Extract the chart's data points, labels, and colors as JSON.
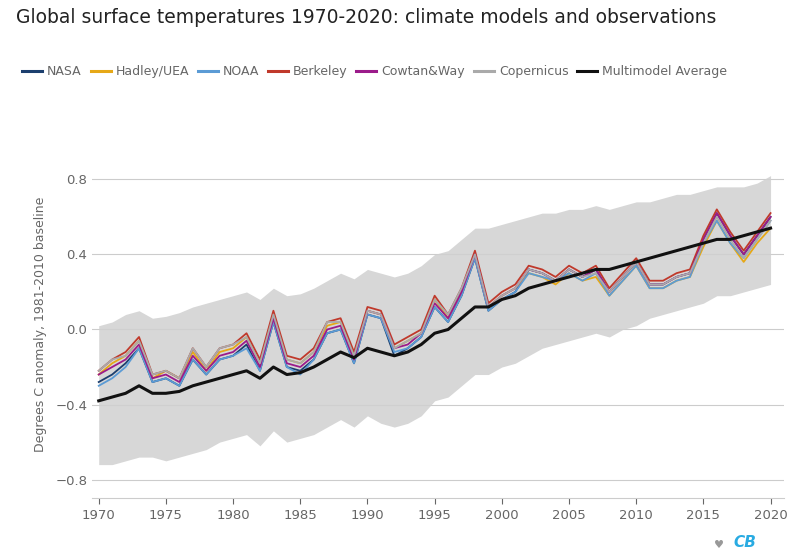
{
  "title": "Global surface temperatures 1970-2020: climate models and observations",
  "ylabel": "Degrees C anomaly, 1981-2010 baseline",
  "years": [
    1970,
    1971,
    1972,
    1973,
    1974,
    1975,
    1976,
    1977,
    1978,
    1979,
    1980,
    1981,
    1982,
    1983,
    1984,
    1985,
    1986,
    1987,
    1988,
    1989,
    1990,
    1991,
    1992,
    1993,
    1994,
    1995,
    1996,
    1997,
    1998,
    1999,
    2000,
    2001,
    2002,
    2003,
    2004,
    2005,
    2006,
    2007,
    2008,
    2009,
    2010,
    2011,
    2012,
    2013,
    2014,
    2015,
    2016,
    2017,
    2018,
    2019,
    2020
  ],
  "NASA": [
    -0.28,
    -0.24,
    -0.18,
    -0.1,
    -0.28,
    -0.26,
    -0.3,
    -0.16,
    -0.24,
    -0.16,
    -0.14,
    -0.08,
    -0.22,
    0.04,
    -0.2,
    -0.22,
    -0.16,
    -0.02,
    0.0,
    -0.18,
    0.08,
    0.06,
    -0.14,
    -0.1,
    -0.04,
    0.12,
    0.04,
    0.18,
    0.38,
    0.1,
    0.16,
    0.2,
    0.32,
    0.3,
    0.26,
    0.32,
    0.28,
    0.32,
    0.2,
    0.28,
    0.36,
    0.24,
    0.24,
    0.28,
    0.3,
    0.48,
    0.62,
    0.5,
    0.4,
    0.5,
    0.6
  ],
  "HadleyUEA": [
    -0.24,
    -0.18,
    -0.14,
    -0.06,
    -0.26,
    -0.22,
    -0.26,
    -0.12,
    -0.22,
    -0.12,
    -0.1,
    -0.04,
    -0.18,
    0.08,
    -0.16,
    -0.18,
    -0.12,
    0.02,
    0.04,
    -0.14,
    0.1,
    0.08,
    -0.1,
    -0.06,
    -0.02,
    0.16,
    0.06,
    0.2,
    0.4,
    0.12,
    0.18,
    0.22,
    0.3,
    0.28,
    0.24,
    0.3,
    0.26,
    0.28,
    0.18,
    0.26,
    0.34,
    0.22,
    0.22,
    0.26,
    0.28,
    0.44,
    0.58,
    0.46,
    0.36,
    0.46,
    0.54
  ],
  "NOAA": [
    -0.3,
    -0.26,
    -0.2,
    -0.1,
    -0.28,
    -0.26,
    -0.3,
    -0.16,
    -0.24,
    -0.16,
    -0.14,
    -0.1,
    -0.22,
    0.04,
    -0.2,
    -0.24,
    -0.16,
    -0.02,
    0.0,
    -0.18,
    0.08,
    0.06,
    -0.12,
    -0.1,
    -0.04,
    0.12,
    0.04,
    0.18,
    0.38,
    0.1,
    0.16,
    0.2,
    0.3,
    0.28,
    0.26,
    0.3,
    0.26,
    0.3,
    0.18,
    0.26,
    0.34,
    0.22,
    0.22,
    0.26,
    0.28,
    0.46,
    0.58,
    0.46,
    0.38,
    0.48,
    0.58
  ],
  "Berkeley": [
    -0.22,
    -0.16,
    -0.12,
    -0.04,
    -0.24,
    -0.22,
    -0.26,
    -0.1,
    -0.2,
    -0.1,
    -0.08,
    -0.02,
    -0.16,
    0.1,
    -0.14,
    -0.16,
    -0.1,
    0.04,
    0.06,
    -0.12,
    0.12,
    0.1,
    -0.08,
    -0.04,
    0.0,
    0.18,
    0.08,
    0.22,
    0.42,
    0.14,
    0.2,
    0.24,
    0.34,
    0.32,
    0.28,
    0.34,
    0.3,
    0.34,
    0.22,
    0.3,
    0.38,
    0.26,
    0.26,
    0.3,
    0.32,
    0.5,
    0.64,
    0.52,
    0.42,
    0.52,
    0.62
  ],
  "CowtanWay": [
    -0.24,
    -0.2,
    -0.16,
    -0.08,
    -0.26,
    -0.24,
    -0.28,
    -0.14,
    -0.22,
    -0.14,
    -0.12,
    -0.06,
    -0.2,
    0.06,
    -0.18,
    -0.2,
    -0.14,
    0.0,
    0.02,
    -0.16,
    0.1,
    0.08,
    -0.1,
    -0.08,
    -0.02,
    0.14,
    0.06,
    0.2,
    0.4,
    0.12,
    0.18,
    0.22,
    0.32,
    0.3,
    0.26,
    0.32,
    0.28,
    0.32,
    0.2,
    0.28,
    0.36,
    0.24,
    0.24,
    0.28,
    0.3,
    0.48,
    0.62,
    0.5,
    0.4,
    0.5,
    0.6
  ],
  "Copernicus": [
    -0.22,
    -0.16,
    -0.14,
    -0.06,
    -0.24,
    -0.22,
    -0.26,
    -0.1,
    -0.2,
    -0.1,
    -0.08,
    -0.04,
    -0.18,
    0.08,
    -0.16,
    -0.18,
    -0.12,
    0.04,
    0.04,
    -0.14,
    0.1,
    0.08,
    -0.1,
    -0.06,
    -0.02,
    0.16,
    0.08,
    0.22,
    0.4,
    0.12,
    0.18,
    0.22,
    0.32,
    0.3,
    0.26,
    0.32,
    0.28,
    0.3,
    0.2,
    0.28,
    0.36,
    0.24,
    0.24,
    0.28,
    0.3,
    0.46,
    0.6,
    0.48,
    0.38,
    0.48,
    0.58
  ],
  "MultimodelMean": [
    -0.38,
    -0.36,
    -0.34,
    -0.3,
    -0.34,
    -0.34,
    -0.33,
    -0.3,
    -0.28,
    -0.26,
    -0.24,
    -0.22,
    -0.26,
    -0.2,
    -0.24,
    -0.23,
    -0.2,
    -0.16,
    -0.12,
    -0.15,
    -0.1,
    -0.12,
    -0.14,
    -0.12,
    -0.08,
    -0.02,
    0.0,
    0.06,
    0.12,
    0.12,
    0.16,
    0.18,
    0.22,
    0.24,
    0.26,
    0.28,
    0.3,
    0.32,
    0.32,
    0.34,
    0.36,
    0.38,
    0.4,
    0.42,
    0.44,
    0.46,
    0.48,
    0.48,
    0.5,
    0.52,
    0.54
  ],
  "ModelUpper": [
    0.02,
    0.04,
    0.08,
    0.1,
    0.06,
    0.07,
    0.09,
    0.12,
    0.14,
    0.16,
    0.18,
    0.2,
    0.16,
    0.22,
    0.18,
    0.19,
    0.22,
    0.26,
    0.3,
    0.27,
    0.32,
    0.3,
    0.28,
    0.3,
    0.34,
    0.4,
    0.42,
    0.48,
    0.54,
    0.54,
    0.56,
    0.58,
    0.6,
    0.62,
    0.62,
    0.64,
    0.64,
    0.66,
    0.64,
    0.66,
    0.68,
    0.68,
    0.7,
    0.72,
    0.72,
    0.74,
    0.76,
    0.76,
    0.76,
    0.78,
    0.82
  ],
  "ModelLower": [
    -0.72,
    -0.72,
    -0.7,
    -0.68,
    -0.68,
    -0.7,
    -0.68,
    -0.66,
    -0.64,
    -0.6,
    -0.58,
    -0.56,
    -0.62,
    -0.54,
    -0.6,
    -0.58,
    -0.56,
    -0.52,
    -0.48,
    -0.52,
    -0.46,
    -0.5,
    -0.52,
    -0.5,
    -0.46,
    -0.38,
    -0.36,
    -0.3,
    -0.24,
    -0.24,
    -0.2,
    -0.18,
    -0.14,
    -0.1,
    -0.08,
    -0.06,
    -0.04,
    -0.02,
    -0.04,
    0.0,
    0.02,
    0.06,
    0.08,
    0.1,
    0.12,
    0.14,
    0.18,
    0.18,
    0.2,
    0.22,
    0.24
  ],
  "colors": {
    "NASA": "#1c3f6e",
    "HadleyUEA": "#e6a817",
    "NOAA": "#5b9bd5",
    "Berkeley": "#c0392b",
    "CowtanWay": "#9b1b8a",
    "Copernicus": "#aaaaaa",
    "MultimodelMean": "#111111",
    "ModelRange": "#d0d0d0"
  },
  "ylim": [
    -0.9,
    0.95
  ],
  "yticks": [
    -0.8,
    -0.4,
    0.0,
    0.4,
    0.8
  ],
  "xlim": [
    1969.5,
    2021.0
  ],
  "xticks": [
    1970,
    1975,
    1980,
    1985,
    1990,
    1995,
    2000,
    2005,
    2010,
    2015,
    2020
  ],
  "background_color": "#ffffff",
  "plot_bg_color": "#ffffff",
  "title_color": "#222222",
  "axis_color": "#cccccc",
  "tick_color": "#666666",
  "title_fontsize": 13.5,
  "legend_fontsize": 9,
  "ylabel_fontsize": 9
}
